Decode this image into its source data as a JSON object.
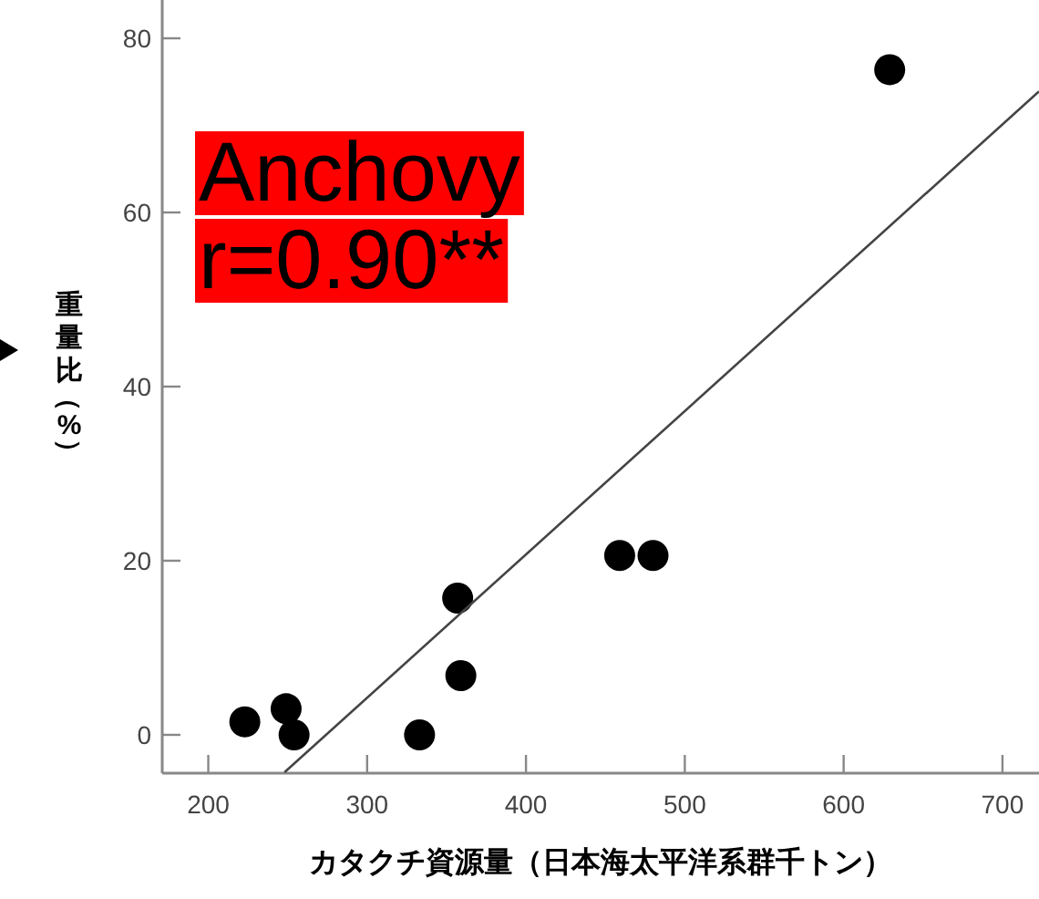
{
  "chart_data": {
    "type": "scatter",
    "xlabel": "カタクチ資源量（日本海太平洋系群千トン）",
    "ylabel": "重量比（%）",
    "annotations": [
      "Anchovy",
      "r=0.90**"
    ],
    "xlim": [
      171,
      723
    ],
    "ylim": [
      -4.4,
      84.4
    ],
    "xticks": [
      200,
      300,
      400,
      500,
      600,
      700
    ],
    "yticks": [
      0,
      20,
      40,
      60,
      80
    ],
    "grid": false,
    "series": [
      {
        "color": "#000000",
        "marker": "circle",
        "x": [
          223,
          249,
          254,
          333,
          357,
          359,
          459,
          480,
          629
        ],
        "values": [
          1.5,
          3.0,
          0,
          0,
          15.7,
          6.8,
          20.6,
          20.6,
          76.4
        ]
      },
      {
        "type": "line",
        "marker": "none",
        "color": "#444444",
        "x": [
          248,
          723
        ],
        "values": [
          -4.3,
          73.9
        ]
      }
    ]
  }
}
